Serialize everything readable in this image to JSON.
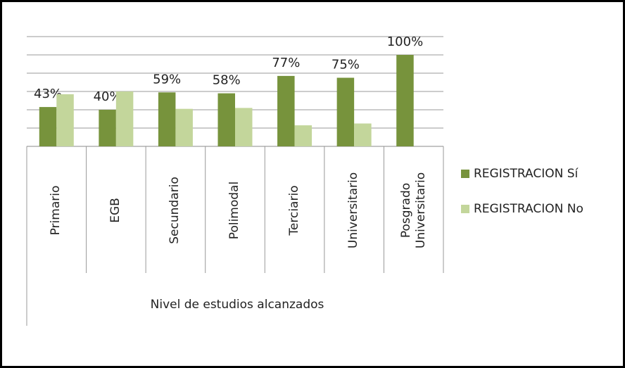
{
  "chart_data": {
    "type": "bar",
    "categories": [
      "Primario",
      "EGB",
      "Secundario",
      "Polimodal",
      "Terciario",
      "Universitario",
      "Posgrado Universitario"
    ],
    "series": [
      {
        "name": "REGISTRACION Sí",
        "color": "#77933c",
        "values": [
          43,
          40,
          59,
          58,
          77,
          75,
          100
        ],
        "value_labels": [
          "43%",
          "40%",
          "59%",
          "58%",
          "77%",
          "75%",
          "100%"
        ]
      },
      {
        "name": "REGISTRACION No",
        "color": "#c3d69b",
        "values": [
          57,
          60,
          41,
          42,
          23,
          25,
          0
        ]
      }
    ],
    "x_label": "Nivel de estudios alcanzados",
    "ylim": [
      0,
      120
    ],
    "yticks": [
      0,
      20,
      40,
      60,
      80,
      100,
      120
    ],
    "grid": true,
    "legend": "right"
  }
}
